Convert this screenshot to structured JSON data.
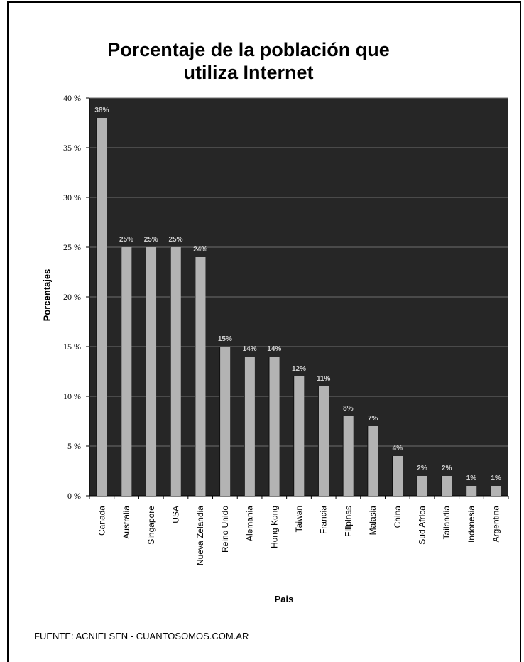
{
  "chart_data": {
    "type": "bar",
    "title": "Porcentaje de la población que utiliza Internet",
    "xlabel": "Pais",
    "ylabel": "Porcentajes",
    "ylim": [
      0,
      40
    ],
    "yticks": [
      "0 %",
      "5 %",
      "10 %",
      "15 %",
      "20 %",
      "25 %",
      "30 %",
      "35 %",
      "40 %"
    ],
    "grid": true,
    "categories": [
      "Canada",
      "Australia",
      "Singapore",
      "USA",
      "Nueva Zelandia",
      "Reino Unido",
      "Alemania",
      "Hong Kong",
      "Taiwan",
      "Francia",
      "Filipinas",
      "Malasia",
      "China",
      "Sud Africa",
      "Tailandia",
      "Indonesia",
      "Argentina"
    ],
    "values": [
      38,
      25,
      25,
      25,
      24,
      15,
      14,
      14,
      12,
      11,
      8,
      7,
      4,
      2,
      2,
      1,
      1
    ],
    "data_labels": [
      "38%",
      "25%",
      "25%",
      "25%",
      "24%",
      "15%",
      "14%",
      "14%",
      "12%",
      "11%",
      "8%",
      "7%",
      "4%",
      "2%",
      "2%",
      "1%",
      "1%"
    ]
  },
  "source": "FUENTE: ACNIELSEN - CUANTOSOMOS.COM.AR",
  "colors": {
    "plot_bg": "#262626",
    "bar": "#b3b3b3",
    "grid": "#6e6e6e",
    "data_label": "#d0d0d0"
  }
}
